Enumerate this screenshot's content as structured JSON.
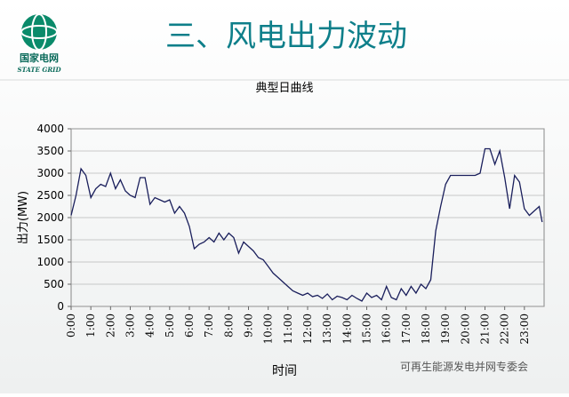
{
  "logo": {
    "name": "国家电网",
    "english": "STATE GRID"
  },
  "slide_title": "三、风电出力波动",
  "watermark": "可再生能源发电并网专委会",
  "chart_data": {
    "type": "line",
    "title": "典型日曲线",
    "x_label": "时间",
    "y_label": "出力(MW)",
    "xlim": [
      0,
      24
    ],
    "ylim": [
      0,
      4000
    ],
    "yticks": [
      0,
      500,
      1000,
      1500,
      2000,
      2500,
      3000,
      3500,
      4000
    ],
    "xticks": [
      {
        "value": 0,
        "label": "0:00"
      },
      {
        "value": 1,
        "label": "1:00"
      },
      {
        "value": 2,
        "label": "2:00"
      },
      {
        "value": 3,
        "label": "3:00"
      },
      {
        "value": 4,
        "label": "4:00"
      },
      {
        "value": 5,
        "label": "5:00"
      },
      {
        "value": 6,
        "label": "6:00"
      },
      {
        "value": 7,
        "label": "7:00"
      },
      {
        "value": 8,
        "label": "8:00"
      },
      {
        "value": 9,
        "label": "9:00"
      },
      {
        "value": 10,
        "label": "10:00"
      },
      {
        "value": 11,
        "label": "11:00"
      },
      {
        "value": 12,
        "label": "12:00"
      },
      {
        "value": 13,
        "label": "13:00"
      },
      {
        "value": 14,
        "label": "14:00"
      },
      {
        "value": 15,
        "label": "15:00"
      },
      {
        "value": 16,
        "label": "16:00"
      },
      {
        "value": 17,
        "label": "17:00"
      },
      {
        "value": 18,
        "label": "18:00"
      },
      {
        "value": 19,
        "label": "19:00"
      },
      {
        "value": 20,
        "label": "20:00"
      },
      {
        "value": 21,
        "label": "21:00"
      },
      {
        "value": 22,
        "label": "22:00"
      },
      {
        "value": 23,
        "label": "23:00"
      }
    ],
    "grid": true,
    "color": "#1a1f5c",
    "x": [
      0,
      0.25,
      0.5,
      0.75,
      1,
      1.25,
      1.5,
      1.75,
      2,
      2.25,
      2.5,
      2.75,
      3,
      3.25,
      3.5,
      3.75,
      4,
      4.25,
      4.5,
      4.75,
      5,
      5.25,
      5.5,
      5.75,
      6,
      6.25,
      6.5,
      6.75,
      7,
      7.25,
      7.5,
      7.75,
      8,
      8.25,
      8.5,
      8.75,
      9,
      9.25,
      9.5,
      9.75,
      10,
      10.25,
      10.5,
      10.75,
      11,
      11.25,
      11.5,
      11.75,
      12,
      12.25,
      12.5,
      12.75,
      13,
      13.25,
      13.5,
      13.75,
      14,
      14.25,
      14.5,
      14.75,
      15,
      15.25,
      15.5,
      15.75,
      16,
      16.25,
      16.5,
      16.75,
      17,
      17.25,
      17.5,
      17.75,
      18,
      18.25,
      18.5,
      18.75,
      19,
      19.25,
      19.5,
      19.75,
      20,
      20.25,
      20.5,
      20.75,
      21,
      21.25,
      21.5,
      21.75,
      22,
      22.25,
      22.5,
      22.75,
      23,
      23.25,
      23.5,
      23.75,
      23.9
    ],
    "values": [
      2050,
      2500,
      3100,
      2950,
      2450,
      2650,
      2750,
      2700,
      3000,
      2650,
      2850,
      2600,
      2500,
      2450,
      2900,
      2900,
      2300,
      2450,
      2400,
      2350,
      2400,
      2100,
      2250,
      2100,
      1800,
      1300,
      1400,
      1450,
      1550,
      1450,
      1650,
      1500,
      1650,
      1550,
      1200,
      1450,
      1350,
      1250,
      1100,
      1050,
      900,
      750,
      650,
      550,
      450,
      350,
      300,
      250,
      300,
      220,
      250,
      180,
      280,
      150,
      230,
      200,
      150,
      250,
      180,
      120,
      300,
      200,
      250,
      150,
      450,
      200,
      150,
      400,
      250,
      450,
      300,
      500,
      400,
      600,
      1700,
      2250,
      2750,
      2950,
      2950,
      2950,
      2950,
      2950,
      2950,
      3000,
      3550,
      3550,
      3200,
      3500,
      2900,
      2200,
      2950,
      2800,
      2200,
      2050,
      2150,
      2250,
      1900
    ]
  }
}
